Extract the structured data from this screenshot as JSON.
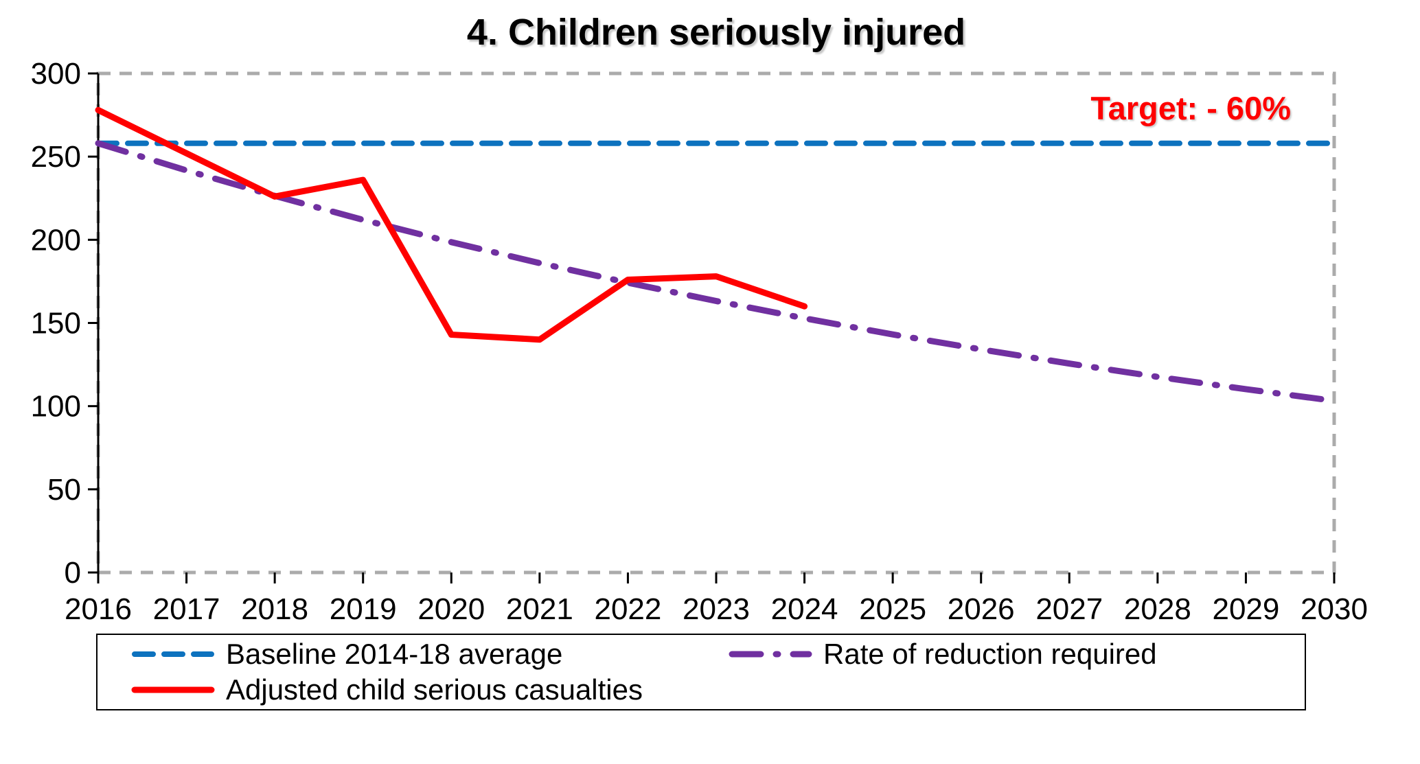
{
  "colors": {
    "background": "#ffffff",
    "frame": "#ABABAB",
    "axis": "#000000",
    "text": "#000000",
    "target_text": "#FF0000",
    "baseline_blue": "#0D72BE",
    "reduction_purple": "#7030A0",
    "casualties_red": "#FF0000"
  },
  "legend": {
    "order": [
      0,
      1,
      2
    ]
  },
  "chart_data": {
    "type": "line",
    "title": "4. Children seriously injured",
    "xlabel": "",
    "ylabel": "",
    "xlim": [
      2016,
      2030
    ],
    "ylim": [
      0,
      300
    ],
    "yticks": [
      0,
      50,
      100,
      150,
      200,
      250,
      300
    ],
    "x": [
      2016,
      2017,
      2018,
      2019,
      2020,
      2021,
      2022,
      2023,
      2024,
      2025,
      2026,
      2027,
      2028,
      2029,
      2030
    ],
    "grid": false,
    "legend_position": "bottom",
    "annotations": [
      {
        "text": "Target: - 60%",
        "color": "#FF0000",
        "position": "top-right"
      }
    ],
    "series": [
      {
        "name": "Baseline 2014-18 average",
        "color": "#0D72BE",
        "style": "dashed",
        "x": [
          2016,
          2030
        ],
        "values": [
          258,
          258
        ]
      },
      {
        "name": "Rate of reduction required",
        "color": "#7030A0",
        "style": "dashdot",
        "x": [
          2016,
          2017,
          2018,
          2019,
          2020,
          2021,
          2022,
          2023,
          2024,
          2025,
          2026,
          2027,
          2028,
          2029,
          2030
        ],
        "values": [
          258,
          241.7,
          226.4,
          212.0,
          198.6,
          186.0,
          174.2,
          163.2,
          152.8,
          143.1,
          134.1,
          125.6,
          117.6,
          110.2,
          103.2
        ]
      },
      {
        "name": "Adjusted child serious casualties",
        "color": "#FF0000",
        "style": "solid",
        "x": [
          2016,
          2017,
          2018,
          2019,
          2020,
          2021,
          2022,
          2023,
          2024
        ],
        "values": [
          278,
          252,
          226,
          236,
          143,
          140,
          176,
          178,
          160
        ]
      }
    ]
  }
}
